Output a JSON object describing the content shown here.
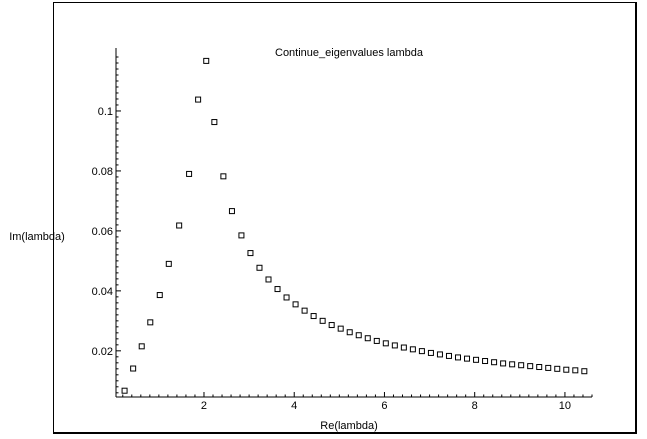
{
  "chart_data": {
    "type": "scatter",
    "title": "Continue_eigenvalues lambda",
    "xlabel": "Re(lambda)",
    "ylabel": "Im(lambda)",
    "xlim": [
      0.05,
      10.6
    ],
    "ylim": [
      0.0046,
      0.121
    ],
    "xticks": [
      2,
      4,
      6,
      8,
      10
    ],
    "yticks": [
      0.02,
      0.04,
      0.06,
      0.08,
      0.1
    ],
    "xtick_labels": [
      "2",
      "4",
      "6",
      "8",
      "10"
    ],
    "ytick_labels": [
      "0.02",
      "0.04",
      "0.06",
      "0.08",
      "0.1"
    ],
    "marker": "square",
    "grid": false,
    "legend": "none",
    "series": [
      {
        "x": [
          0.24,
          0.43,
          0.62,
          0.81,
          1.02,
          1.22,
          1.45,
          1.67,
          1.87,
          2.05,
          2.23,
          2.43,
          2.62,
          2.83,
          3.03,
          3.23,
          3.43,
          3.63,
          3.83,
          4.03,
          4.23,
          4.43,
          4.63,
          4.83,
          5.03,
          5.23,
          5.43,
          5.63,
          5.83,
          6.03,
          6.23,
          6.43,
          6.63,
          6.83,
          7.03,
          7.23,
          7.43,
          7.63,
          7.83,
          8.03,
          8.23,
          8.43,
          8.63,
          8.83,
          9.03,
          9.23,
          9.43,
          9.63,
          9.83,
          10.03,
          10.23,
          10.43
        ],
        "y": [
          0.0067,
          0.0141,
          0.0215,
          0.0295,
          0.0386,
          0.049,
          0.0618,
          0.079,
          0.1038,
          0.1167,
          0.0963,
          0.0782,
          0.0666,
          0.0585,
          0.0526,
          0.0477,
          0.0438,
          0.0406,
          0.0378,
          0.0355,
          0.0334,
          0.0316,
          0.03,
          0.0286,
          0.0274,
          0.0262,
          0.0252,
          0.0242,
          0.0233,
          0.0225,
          0.0218,
          0.0211,
          0.0205,
          0.0199,
          0.0193,
          0.0188,
          0.0183,
          0.0178,
          0.0174,
          0.017,
          0.0166,
          0.0162,
          0.0158,
          0.0155,
          0.0152,
          0.0149,
          0.0146,
          0.0143,
          0.014,
          0.0137,
          0.0135,
          0.0132
        ]
      }
    ]
  }
}
